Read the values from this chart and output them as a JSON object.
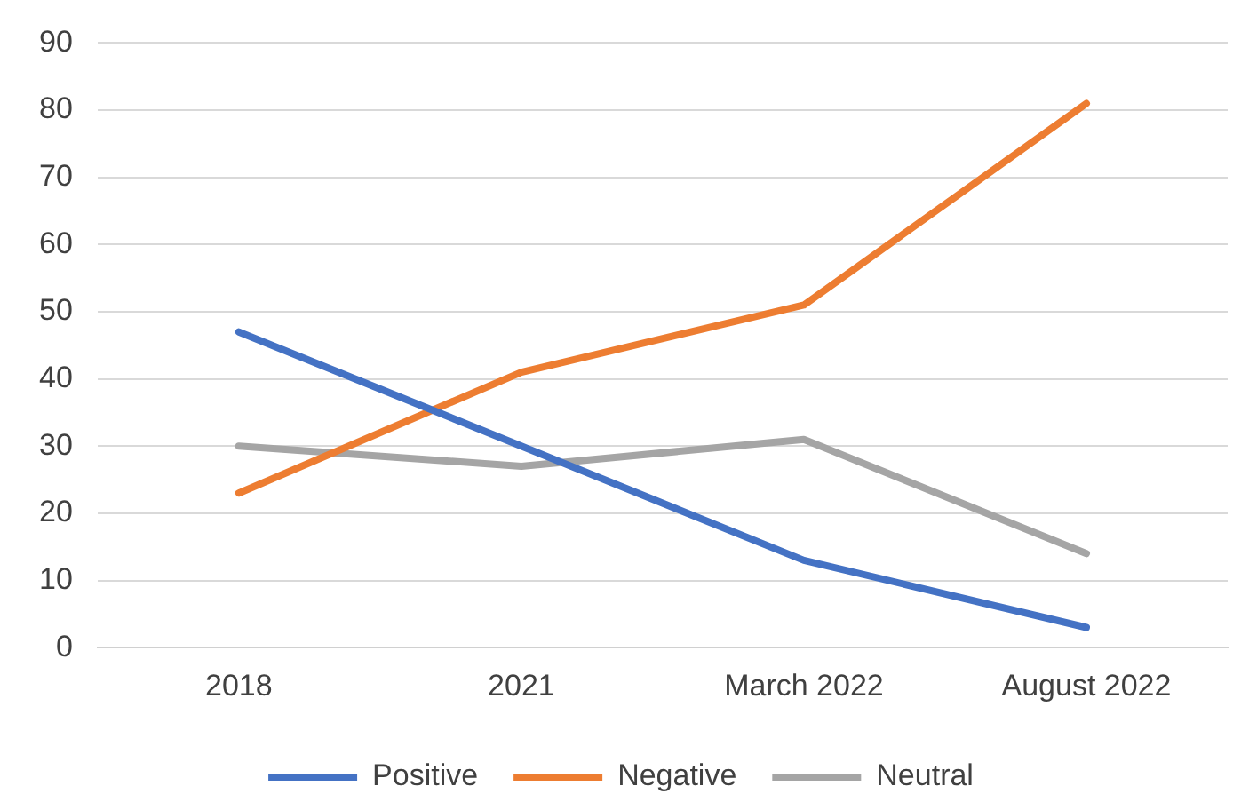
{
  "chart_data": {
    "type": "line",
    "categories": [
      "2018",
      "2021",
      "March 2022",
      "August 2022"
    ],
    "series": [
      {
        "name": "Positive",
        "color": "#4472c4",
        "values": [
          47,
          30,
          13,
          3
        ]
      },
      {
        "name": "Negative",
        "color": "#ed7d31",
        "values": [
          23,
          41,
          51,
          81
        ]
      },
      {
        "name": "Neutral",
        "color": "#a5a5a5",
        "values": [
          30,
          27,
          31,
          14
        ]
      }
    ],
    "ylim": [
      0,
      90
    ],
    "yticks": [
      0,
      10,
      20,
      30,
      40,
      50,
      60,
      70,
      80,
      90
    ],
    "grid": "y",
    "legend": "bottom",
    "marker": "none",
    "line_style": "solid"
  }
}
